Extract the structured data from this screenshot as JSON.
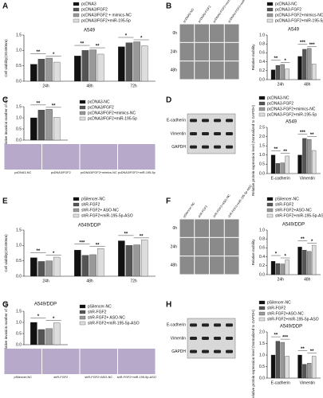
{
  "chart_data": [
    {
      "type": "bar",
      "panel": "A",
      "title": "A549",
      "ylabel": "Cell viability(OD450nm)",
      "categories": [
        "24h",
        "48h",
        "72h"
      ],
      "series": [
        {
          "name": "pcDNA3",
          "color": "#111111",
          "values": [
            0.55,
            0.82,
            1.12
          ]
        },
        {
          "name": "pcDNA3/FGF2",
          "color": "#555555",
          "values": [
            0.72,
            1.0,
            1.25
          ]
        },
        {
          "name": "pcDNA3/FGF2 + mimics-NC",
          "color": "#999999",
          "values": [
            0.75,
            1.02,
            1.28
          ]
        },
        {
          "name": "pcDNA3/FGF2+miR-195-5p",
          "color": "#dddddd",
          "values": [
            0.62,
            0.88,
            1.15
          ]
        }
      ],
      "ylim": [
        0,
        1.5
      ],
      "yticks": [
        {
          "value": 0,
          "label": "0.0"
        },
        0.5,
        {
          "value": 1,
          "label": "1.0"
        },
        1.5
      ],
      "significance": [
        [
          "**",
          "*"
        ],
        [
          "**",
          "**"
        ],
        [
          "*",
          "*"
        ]
      ]
    },
    {
      "type": "bar",
      "panel": "B",
      "title": "A549",
      "ylabel": "Relative mobility",
      "categories": [
        "24h",
        "48h"
      ],
      "series": [
        {
          "name": "pcDNA3-NC",
          "color": "#111111",
          "values": [
            0.22,
            0.52
          ]
        },
        {
          "name": "pcDNA3-FGF2",
          "color": "#555555",
          "values": [
            0.32,
            0.68
          ]
        },
        {
          "name": "pcDNA3-FGF2+mimics-NC",
          "color": "#999999",
          "values": [
            0.34,
            0.7
          ]
        },
        {
          "name": "pcDNA3-FGF2+miR-195-5p",
          "color": "#dddddd",
          "values": [
            0.24,
            0.35
          ]
        }
      ],
      "ylim": [
        0,
        1
      ],
      "yticks": [
        {
          "value": 0,
          "label": "0.0"
        },
        0.2,
        0.4,
        0.6,
        0.8,
        {
          "value": 1,
          "label": "1.0"
        }
      ],
      "significance": [
        [
          "**",
          "*"
        ],
        [
          "***",
          "***"
        ]
      ],
      "image_labels": {
        "columns": [
          "pcDNA3-NC",
          "pcDNA3-FGF2",
          "pcDNA3-FGF2+mimics-NC",
          "pcDNA3-FGF2+miR-195-5p"
        ],
        "rows": [
          "0h",
          "24h",
          "48h"
        ]
      }
    },
    {
      "type": "bar",
      "panel": "C",
      "ylabel": "Relative invasion number of cell",
      "categories": [
        null
      ],
      "series": [
        {
          "name": "pcDNA3-NC",
          "color": "#111111",
          "values": [
            1.0
          ]
        },
        {
          "name": "pcDNA3/FGF2",
          "color": "#555555",
          "values": [
            1.35
          ]
        },
        {
          "name": "pcDNA3/FGF2+mimics-NC",
          "color": "#999999",
          "values": [
            1.38
          ]
        },
        {
          "name": "pcDNA3/FGF2+miR-195-5p",
          "color": "#dddddd",
          "values": [
            1.02
          ]
        }
      ],
      "ylim": [
        0,
        1.5
      ],
      "yticks": [
        {
          "value": 0,
          "label": "0.0"
        },
        0.5,
        {
          "value": 1,
          "label": "1.0"
        },
        1.5
      ],
      "significance": [
        [
          "**",
          "**"
        ]
      ],
      "image_labels": {
        "columns": [
          "pcDNA3-NC",
          "pcDNA3/FGF2",
          "pcDNA3/FGF2+mimics-NC",
          "pcDNA3/FGF2+miR-195-5p"
        ]
      }
    },
    {
      "type": "bar",
      "panel": "D",
      "title": "A549",
      "ylabel": "Relative protein expression level (Normalized to GAPDH)",
      "categories": [
        "E-cadherin",
        "Vimentin"
      ],
      "series": [
        {
          "name": "pcDNA3-NC",
          "color": "#111111",
          "values": [
            1.0,
            1.0
          ]
        },
        {
          "name": "pcDNA3-FGF2",
          "color": "#555555",
          "values": [
            0.55,
            1.9
          ]
        },
        {
          "name": "pcDNA3-FGF2+mimics-NC",
          "color": "#999999",
          "values": [
            0.58,
            1.85
          ]
        },
        {
          "name": "pcDNA3-FGF2+miR-195-5p",
          "color": "#dddddd",
          "values": [
            0.95,
            1.25
          ]
        }
      ],
      "ylim": [
        0,
        2.5
      ],
      "yticks": [
        {
          "value": 0,
          "label": "0.0"
        },
        0.5,
        {
          "value": 1,
          "label": "1.0"
        },
        1.5,
        {
          "value": 2,
          "label": "2.0"
        },
        2.5
      ],
      "significance": [
        [
          "**",
          "**"
        ],
        [
          "***",
          "**"
        ]
      ],
      "blot_labels": [
        "E-cadherin",
        "Vimentin",
        "GAPDH"
      ]
    },
    {
      "type": "bar",
      "panel": "E",
      "title": "A549/DDP",
      "ylabel": "Cell viability(OD450nm)",
      "categories": [
        "24h",
        "48h",
        "72h"
      ],
      "series": [
        {
          "name": "pSilencer-NC",
          "color": "#111111",
          "values": [
            0.6,
            0.85,
            1.15
          ]
        },
        {
          "name": "shR-FGF2",
          "color": "#555555",
          "values": [
            0.48,
            0.68,
            1.0
          ]
        },
        {
          "name": "shR-FGF2+ ASO-NC",
          "color": "#999999",
          "values": [
            0.5,
            0.7,
            1.02
          ]
        },
        {
          "name": "shR-FGF2+miR-195-5p-ASO",
          "color": "#dddddd",
          "values": [
            0.62,
            0.9,
            1.18
          ]
        }
      ],
      "ylim": [
        0,
        1.5
      ],
      "yticks": [
        {
          "value": 0,
          "label": "0.0"
        },
        0.5,
        {
          "value": 1,
          "label": "1.0"
        },
        1.5
      ],
      "significance": [
        [
          "**",
          "*"
        ],
        [
          "***",
          "**"
        ],
        [
          "**",
          "**"
        ]
      ]
    },
    {
      "type": "bar",
      "panel": "F",
      "title": "A549/DDP",
      "ylabel": "Relative mobility",
      "categories": [
        "24h",
        "48h"
      ],
      "series": [
        {
          "name": "pSilencer-NC",
          "color": "#111111",
          "values": [
            0.3,
            0.62
          ]
        },
        {
          "name": "shR-FGF2",
          "color": "#555555",
          "values": [
            0.25,
            0.55
          ]
        },
        {
          "name": "shR-FGF2+ASO-NC",
          "color": "#999999",
          "values": [
            0.24,
            0.52
          ]
        },
        {
          "name": "shR-FGF2+miR-195-5p-ASO",
          "color": "#dddddd",
          "values": [
            0.33,
            0.66
          ]
        }
      ],
      "ylim": [
        0,
        1
      ],
      "yticks": [
        {
          "value": 0,
          "label": "0.0"
        },
        0.2,
        0.4,
        0.6,
        0.8,
        {
          "value": 1,
          "label": "1.0"
        }
      ],
      "significance": [
        [
          "*",
          "*"
        ],
        [
          "**",
          "*"
        ]
      ],
      "image_labels": {
        "columns": [
          "pSilencer-NC",
          "shR-FGF2",
          "shR-FGF2+ASO-NC",
          "shR-FGF2+miR-195-5p-ASO"
        ],
        "rows": [
          "0h",
          "24h",
          "48h"
        ]
      }
    },
    {
      "type": "bar",
      "panel": "G",
      "title": "A549/DDP",
      "ylabel": "Relative invasion number of cell",
      "categories": [
        null
      ],
      "series": [
        {
          "name": "pSilencer-NC",
          "color": "#111111",
          "values": [
            1.0
          ]
        },
        {
          "name": "shR-FGF2",
          "color": "#555555",
          "values": [
            0.68
          ]
        },
        {
          "name": "shR-FGF2+ ASO-NC",
          "color": "#999999",
          "values": [
            0.72
          ]
        },
        {
          "name": "shR-FGF2+miR-195-5p-ASO",
          "color": "#dddddd",
          "values": [
            0.98
          ]
        }
      ],
      "ylim": [
        0,
        1.5
      ],
      "yticks": [
        {
          "value": 0,
          "label": "0.0"
        },
        0.5,
        {
          "value": 1,
          "label": "1.0"
        },
        1.5
      ],
      "significance": [
        [
          "*",
          "*"
        ]
      ],
      "image_labels": {
        "columns": [
          "pSilencer-NC",
          "shR-FGF2",
          "shR-FGF2+ASO-NC",
          "shR-FGF2+miR-195-5p-ASO"
        ]
      }
    },
    {
      "type": "bar",
      "panel": "H",
      "title": "A549/DDP",
      "ylabel": "Relative protein expression level (Normalized to GAPDH)",
      "categories": [
        "E-cadherin",
        "Vimentin"
      ],
      "series": [
        {
          "name": "pSilencer-NC",
          "color": "#111111",
          "values": [
            1.0,
            1.0
          ]
        },
        {
          "name": "shR-FGF2",
          "color": "#555555",
          "values": [
            1.6,
            0.6
          ]
        },
        {
          "name": "shR-FGF2+ASO-NC",
          "color": "#999999",
          "values": [
            1.55,
            0.65
          ]
        },
        {
          "name": "shR-FGF2+miR-195-5p-ASO",
          "color": "#dddddd",
          "values": [
            0.95,
            0.95
          ]
        }
      ],
      "ylim": [
        0,
        2
      ],
      "yticks": [
        {
          "value": 0,
          "label": "0.0"
        },
        0.5,
        {
          "value": 1,
          "label": "1.0"
        },
        1.5,
        {
          "value": 2,
          "label": "2.0"
        }
      ],
      "significance": [
        [
          "**",
          "***"
        ],
        [
          "**",
          "**"
        ]
      ],
      "blot_labels": [
        "E-cadherin",
        "Vimentin",
        "GAPDH"
      ]
    }
  ]
}
